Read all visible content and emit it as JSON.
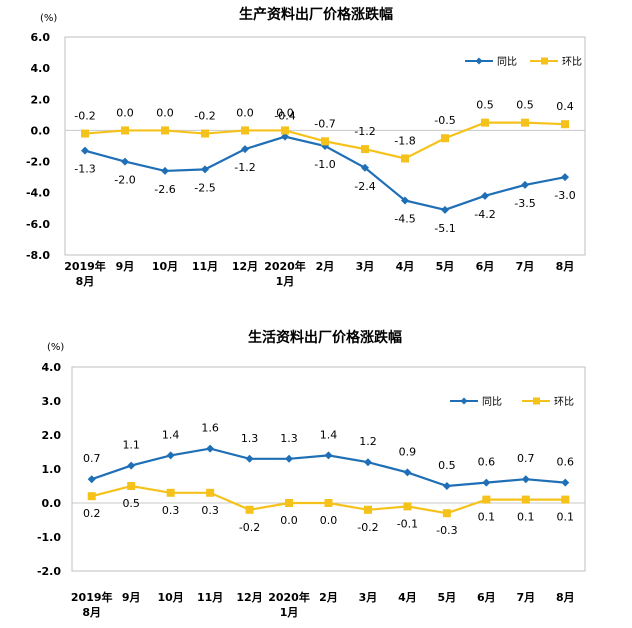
{
  "chart_data": [
    {
      "type": "line",
      "title": "生产资料出厂价格涨跌幅",
      "unit_label": "(%)",
      "ylim": [
        -8.0,
        6.0
      ],
      "yticks": [
        "6.0",
        "4.0",
        "2.0",
        "0.0",
        "-2.0",
        "-4.0",
        "-6.0",
        "-8.0"
      ],
      "categories": [
        [
          "2019年",
          "8月"
        ],
        [
          "9月"
        ],
        [
          "10月"
        ],
        [
          "11月"
        ],
        [
          "12月"
        ],
        [
          "2020年",
          "1月"
        ],
        [
          "2月"
        ],
        [
          "3月"
        ],
        [
          "4月"
        ],
        [
          "5月"
        ],
        [
          "6月"
        ],
        [
          "7月"
        ],
        [
          "8月"
        ]
      ],
      "series": [
        {
          "name": "同比",
          "color": "#1f6fb6",
          "marker": "diamond",
          "values": [
            -1.3,
            -2.0,
            -2.6,
            -2.5,
            -1.2,
            -0.4,
            -1.0,
            -2.4,
            -4.5,
            -5.1,
            -4.2,
            -3.5,
            -3.0
          ],
          "labels": [
            "-1.3",
            "-2.0",
            "-2.6",
            "-2.5",
            "-1.2",
            "-0.4",
            "-1.0",
            "-2.4",
            "-4.5",
            "-5.1",
            "-4.2",
            "-3.5",
            "-3.0"
          ]
        },
        {
          "name": "环比",
          "color": "#f5c21b",
          "marker": "square",
          "values": [
            -0.2,
            0.0,
            0.0,
            -0.2,
            0.0,
            0.0,
            -0.7,
            -1.2,
            -1.8,
            -0.5,
            0.5,
            0.5,
            0.4
          ],
          "labels": [
            "-0.2",
            "0.0",
            "0.0",
            "-0.2",
            "0.0",
            "0.0",
            "-0.7",
            "-1.2",
            "-1.8",
            "-0.5",
            "0.5",
            "0.5",
            "0.4"
          ]
        }
      ],
      "legend_position": "top-right"
    },
    {
      "type": "line",
      "title": "生活资料出厂价格涨跌幅",
      "unit_label": "(%)",
      "ylim": [
        -2.0,
        4.0
      ],
      "yticks": [
        "4.0",
        "3.0",
        "2.0",
        "1.0",
        "0.0",
        "-1.0",
        "-2.0"
      ],
      "categories": [
        [
          "2019年",
          "8月"
        ],
        [
          "9月"
        ],
        [
          "10月"
        ],
        [
          "11月"
        ],
        [
          "12月"
        ],
        [
          "2020年",
          "1月"
        ],
        [
          "2月"
        ],
        [
          "3月"
        ],
        [
          "4月"
        ],
        [
          "5月"
        ],
        [
          "6月"
        ],
        [
          "7月"
        ],
        [
          "8月"
        ]
      ],
      "series": [
        {
          "name": "同比",
          "color": "#1f6fb6",
          "marker": "diamond",
          "values": [
            0.7,
            1.1,
            1.4,
            1.6,
            1.3,
            1.3,
            1.4,
            1.2,
            0.9,
            0.5,
            0.6,
            0.7,
            0.6
          ],
          "labels": [
            "0.7",
            "1.1",
            "1.4",
            "1.6",
            "1.3",
            "1.3",
            "1.4",
            "1.2",
            "0.9",
            "0.5",
            "0.6",
            "0.7",
            "0.6"
          ]
        },
        {
          "name": "环比",
          "color": "#f5c21b",
          "marker": "square",
          "values": [
            0.2,
            0.5,
            0.3,
            0.3,
            -0.2,
            0.0,
            0.0,
            -0.2,
            -0.1,
            -0.3,
            0.1,
            0.1,
            0.1
          ],
          "labels": [
            "0.2",
            "0.5",
            "0.3",
            "0.3",
            "-0.2",
            "0.0",
            "0.0",
            "-0.2",
            "-0.1",
            "-0.3",
            "0.1",
            "0.1",
            "0.1"
          ]
        }
      ],
      "legend_position": "top-right"
    }
  ]
}
